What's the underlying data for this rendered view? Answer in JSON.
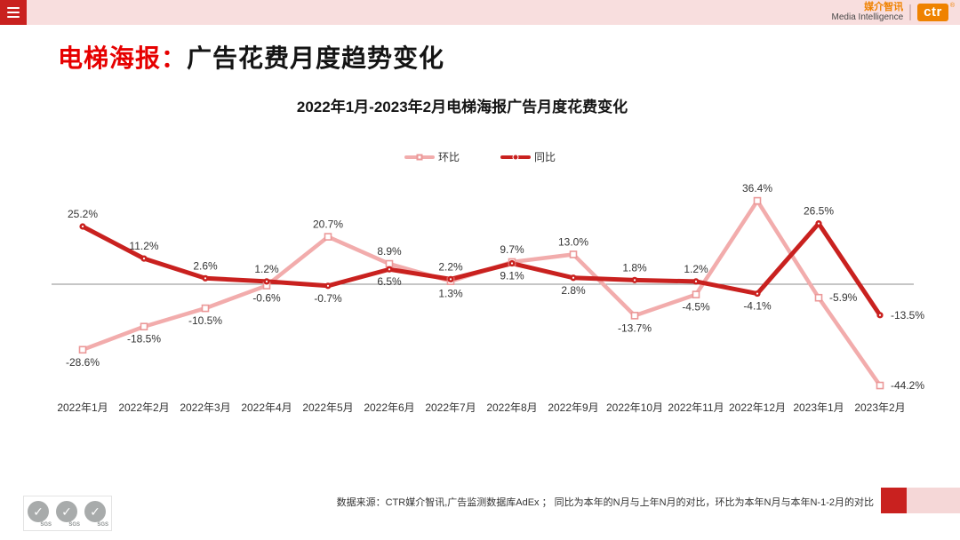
{
  "topbar": {
    "menu_icon": "hamburger-icon"
  },
  "brand": {
    "cn": "媒介智讯",
    "en": "Media Intelligence",
    "logo": "ctr",
    "reg": "®"
  },
  "title": {
    "highlight": "电梯海报：",
    "rest": "广告花费月度趋势变化"
  },
  "chart_data": {
    "type": "line",
    "title": "2022年1月-2023年2月电梯海报广告月度花费变化",
    "categories": [
      "2022年1月",
      "2022年2月",
      "2022年3月",
      "2022年4月",
      "2022年5月",
      "2022年6月",
      "2022年7月",
      "2022年8月",
      "2022年9月",
      "2022年10月",
      "2022年11月",
      "2022年12月",
      "2023年1月",
      "2023年2月"
    ],
    "series": [
      {
        "name": "环比",
        "color": "#f2acac",
        "marker": "square",
        "marker_stroke": "#eb9898",
        "values": [
          -28.6,
          -18.5,
          -10.5,
          -0.6,
          20.7,
          8.9,
          1.3,
          9.7,
          13.0,
          -13.7,
          -4.5,
          36.4,
          -5.9,
          -44.2
        ],
        "label_pos": [
          "below",
          "below",
          "below",
          "below",
          "above",
          "above",
          "below",
          "above",
          "above",
          "below",
          "below",
          "above",
          "right",
          "right"
        ]
      },
      {
        "name": "同比",
        "color": "#c9211f",
        "marker": "dot",
        "marker_stroke": "#c9211f",
        "values": [
          25.2,
          11.2,
          2.6,
          1.2,
          -0.7,
          6.5,
          2.2,
          9.1,
          2.8,
          1.8,
          1.2,
          -4.1,
          26.5,
          -13.5
        ],
        "label_pos": [
          "above",
          "above",
          "above",
          "above",
          "below",
          "below",
          "above",
          "below",
          "below",
          "above",
          "above",
          "below",
          "above",
          "right"
        ]
      }
    ],
    "value_suffix": "%",
    "ylim": [
      -50,
      40
    ],
    "grid": false,
    "zero_line": true,
    "legend_position": "top-center",
    "label_color": "#333333",
    "axis_color": "#8c8c8c"
  },
  "footer": {
    "source": "数据来源：CTR媒介智讯,广告监测数据库AdEx ； 同比为本年的N月与上年N月的对比，环比为本年N月与本年N-1-2月的对比",
    "cert_label": "SGS",
    "accent_red": "#c9211f",
    "accent_pink": "#f5d7d7"
  }
}
